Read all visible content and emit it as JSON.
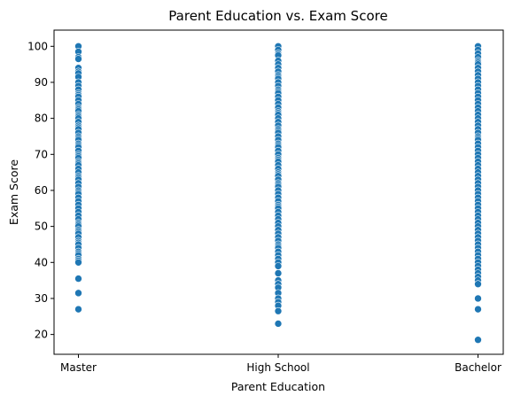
{
  "chart_data": {
    "type": "scatter",
    "title": "Parent Education vs. Exam Score",
    "xlabel": "Parent Education",
    "ylabel": "Exam Score",
    "categories": [
      "Master",
      "High School",
      "Bachelor"
    ],
    "ylim": [
      14.5,
      104.5
    ],
    "yticks": [
      20,
      30,
      40,
      50,
      60,
      70,
      80,
      90,
      100
    ],
    "grid": false,
    "marker_color": "#1f77b4",
    "series": [
      {
        "category": "Master",
        "values": [
          100,
          98.5,
          97,
          96.5,
          94,
          93,
          92.5,
          91.5,
          90,
          89,
          88,
          87,
          86.5,
          86,
          85,
          84,
          83,
          82.5,
          82,
          81,
          80.5,
          80,
          79,
          78,
          77.5,
          77,
          76,
          75,
          74.5,
          74,
          73,
          72.5,
          72,
          71,
          70,
          69.5,
          69,
          68,
          67.5,
          67,
          66,
          65,
          64,
          63.5,
          63,
          62,
          61,
          60,
          59.5,
          59,
          58,
          57,
          56,
          55,
          54,
          53,
          52,
          51,
          50.5,
          50,
          49,
          48.5,
          48,
          47,
          46,
          45.5,
          45,
          44,
          43,
          42.5,
          42,
          41,
          40.5,
          40,
          35.5,
          31.5,
          27
        ]
      },
      {
        "category": "High School",
        "values": [
          100,
          99,
          98,
          97.5,
          96,
          95,
          94,
          93,
          92,
          91.5,
          91,
          90,
          89,
          88,
          87.5,
          87,
          86,
          85,
          84,
          83,
          82,
          81.5,
          81,
          80,
          79,
          78,
          77,
          76.5,
          76,
          75,
          74,
          73,
          72.5,
          72,
          71,
          70,
          69,
          68.5,
          68,
          67,
          66,
          65,
          64.5,
          64,
          63,
          62,
          61.5,
          61,
          60,
          59,
          58,
          57,
          56,
          55.5,
          55,
          54,
          53,
          52,
          51,
          50,
          49,
          48,
          47,
          46,
          45,
          44.5,
          44,
          43,
          42,
          41,
          40,
          39,
          37,
          35,
          34,
          33,
          31.5,
          30,
          29,
          28,
          26.5,
          23
        ]
      },
      {
        "category": "Bachelor",
        "values": [
          100,
          99,
          98,
          97,
          96,
          95.5,
          95,
          94,
          93,
          92,
          91,
          90,
          89,
          88,
          87,
          86,
          85,
          84,
          83,
          82,
          81,
          80,
          79,
          78,
          77,
          76,
          75,
          74.5,
          74,
          73,
          72,
          71,
          70,
          69,
          68,
          67,
          66,
          65,
          64,
          63,
          62,
          61,
          60,
          59,
          58,
          57,
          56,
          55,
          54,
          53,
          52,
          51,
          50,
          49,
          48,
          47,
          46,
          45,
          44,
          43,
          42,
          41,
          40,
          39,
          38,
          37,
          36,
          35,
          34,
          30,
          27,
          18.5
        ]
      }
    ]
  }
}
